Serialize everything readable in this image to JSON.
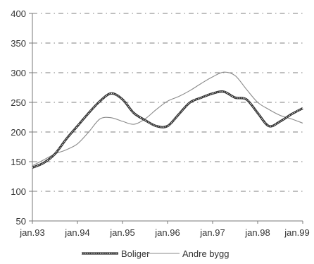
{
  "chart_data": {
    "type": "line",
    "title": "",
    "xlabel": "",
    "ylabel": "",
    "ylim": [
      50,
      400
    ],
    "yticks": [
      50,
      100,
      150,
      200,
      250,
      300,
      350,
      400
    ],
    "xlim": [
      1993,
      1999
    ],
    "xticks": [
      {
        "x": 1993,
        "label": "jan.93"
      },
      {
        "x": 1994,
        "label": "jan.94"
      },
      {
        "x": 1995,
        "label": "jan.95"
      },
      {
        "x": 1996,
        "label": "jan.96"
      },
      {
        "x": 1997,
        "label": "jan.97"
      },
      {
        "x": 1998,
        "label": "jan.98"
      },
      {
        "x": 1999,
        "label": "jan.99"
      }
    ],
    "grid": "horizontal dash-dot",
    "legend": "bottom",
    "series": [
      {
        "name": "Boliger",
        "color": "#333333",
        "style": "thick-textured",
        "x": [
          1993.0,
          1993.25,
          1993.5,
          1993.75,
          1994.0,
          1994.25,
          1994.5,
          1994.75,
          1995.0,
          1995.25,
          1995.5,
          1995.75,
          1996.0,
          1996.25,
          1996.5,
          1996.75,
          1997.0,
          1997.25,
          1997.5,
          1997.75,
          1998.0,
          1998.25,
          1998.5,
          1998.75,
          1999.0
        ],
        "y": [
          140,
          148,
          163,
          188,
          210,
          232,
          252,
          265,
          255,
          232,
          220,
          210,
          210,
          230,
          250,
          258,
          265,
          268,
          258,
          255,
          232,
          210,
          218,
          230,
          240
        ]
      },
      {
        "name": "Andre bygg",
        "color": "#8a8a8a",
        "style": "thin",
        "x": [
          1993.0,
          1993.25,
          1993.5,
          1993.75,
          1994.0,
          1994.25,
          1994.5,
          1994.75,
          1995.0,
          1995.25,
          1995.5,
          1995.75,
          1996.0,
          1996.25,
          1996.5,
          1996.75,
          1997.0,
          1997.25,
          1997.5,
          1997.75,
          1998.0,
          1998.25,
          1998.5,
          1998.75,
          1999.0
        ],
        "y": [
          143,
          153,
          163,
          170,
          180,
          200,
          222,
          224,
          218,
          213,
          222,
          238,
          252,
          260,
          270,
          282,
          293,
          301,
          295,
          272,
          250,
          238,
          228,
          222,
          215
        ]
      }
    ]
  }
}
